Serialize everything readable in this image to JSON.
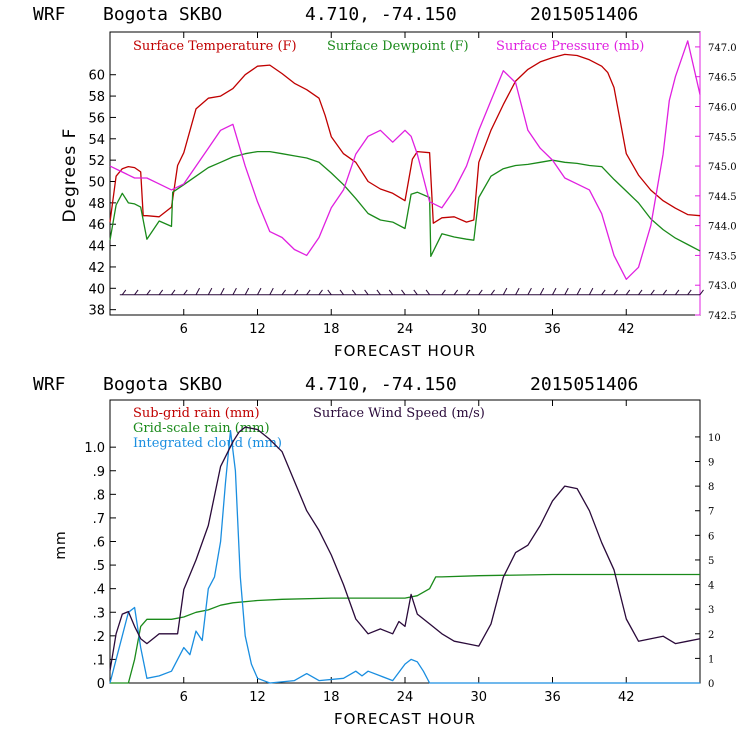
{
  "colors": {
    "temperature": "#c00000",
    "dewpoint": "#1a8a1a",
    "pressure": "#e020e0",
    "subgrid": "#c00000",
    "gridscale": "#1a8a1a",
    "cloud": "#1a8ee0",
    "wind": "#2a0a3a",
    "barbs": "#2a0a3a"
  },
  "chart_data": [
    {
      "type": "line",
      "header": {
        "model": "WRF",
        "station": "Bogota SKBO",
        "coords": "4.710, -74.150",
        "init": "2015051406"
      },
      "xlabel": "FORECAST HOUR",
      "ylabel": "Degrees F",
      "xlim": [
        0,
        48
      ],
      "ylim": [
        37.5,
        64
      ],
      "y2lim": [
        742.5,
        747.25
      ],
      "xticks": [
        "6",
        "12",
        "18",
        "24",
        "30",
        "36",
        "42"
      ],
      "yticks": [
        "38",
        "40",
        "42",
        "44",
        "46",
        "48",
        "50",
        "52",
        "54",
        "56",
        "58",
        "60"
      ],
      "y2ticks": [
        "742.5",
        "743.0",
        "743.5",
        "744.0",
        "744.5",
        "745.0",
        "745.5",
        "746.0",
        "746.5",
        "747.0"
      ],
      "legend": [
        "Surface Temperature (F)",
        "Surface Dewpoint (F)",
        "Surface Pressure (mb)"
      ],
      "series": [
        {
          "name": "Surface Temperature (F)",
          "x": [
            0,
            0.5,
            1,
            1.5,
            2,
            2.5,
            2.7,
            3,
            4,
            5,
            5.5,
            6,
            7,
            8,
            9,
            10,
            11,
            12,
            13,
            14,
            15,
            16,
            17,
            17.5,
            18,
            19,
            20,
            21,
            22,
            23,
            24,
            24.6,
            25,
            26,
            26.3,
            27,
            28,
            29,
            29.6,
            30,
            31,
            32,
            33,
            34,
            35,
            36,
            37,
            38,
            39,
            40,
            40.5,
            41,
            42,
            43,
            44,
            45,
            46,
            47,
            48
          ],
          "values": [
            46.2,
            50.5,
            51.2,
            51.4,
            51.3,
            50.9,
            46.8,
            46.8,
            46.7,
            47.6,
            51.5,
            52.7,
            56.8,
            57.8,
            58.0,
            58.7,
            60.0,
            60.8,
            60.9,
            60.1,
            59.2,
            58.6,
            57.8,
            56.2,
            54.2,
            52.6,
            51.8,
            50.0,
            49.3,
            48.9,
            48.2,
            52.1,
            52.8,
            52.7,
            46.1,
            46.6,
            46.7,
            46.2,
            46.4,
            51.8,
            54.8,
            57.2,
            59.4,
            60.5,
            61.2,
            61.6,
            61.9,
            61.8,
            61.4,
            60.8,
            60.2,
            58.8,
            52.6,
            50.6,
            49.2,
            48.2,
            47.5,
            46.9,
            46.8
          ]
        },
        {
          "name": "Surface Dewpoint (F)",
          "x": [
            0,
            0.5,
            1,
            1.5,
            2,
            2.5,
            3,
            4,
            5,
            5.1,
            6,
            7,
            8,
            9,
            10,
            11,
            12,
            13,
            14,
            15,
            16,
            17,
            18,
            19,
            20,
            21,
            22,
            23,
            24,
            24.5,
            25,
            26,
            26.1,
            27,
            28,
            29,
            29.6,
            30,
            31,
            32,
            33,
            34,
            35,
            36,
            37,
            38,
            39,
            40,
            41,
            42,
            43,
            44,
            45,
            46,
            47,
            48
          ],
          "values": [
            44.5,
            47.8,
            48.9,
            48.0,
            47.9,
            47.6,
            44.6,
            46.3,
            45.8,
            49.0,
            49.7,
            50.5,
            51.3,
            51.8,
            52.3,
            52.6,
            52.8,
            52.8,
            52.6,
            52.4,
            52.2,
            51.8,
            50.8,
            49.7,
            48.4,
            47.0,
            46.4,
            46.2,
            45.6,
            48.8,
            49.0,
            48.5,
            43.0,
            45.1,
            44.8,
            44.6,
            44.5,
            48.5,
            50.5,
            51.2,
            51.5,
            51.6,
            51.8,
            52.0,
            51.8,
            51.7,
            51.5,
            51.4,
            50.2,
            49.1,
            48.0,
            46.5,
            45.5,
            44.7,
            44.1,
            43.5
          ]
        },
        {
          "name": "Surface Pressure (mb)",
          "axis": "right",
          "x": [
            0,
            1,
            2,
            3,
            4,
            5,
            6,
            7,
            8,
            9,
            10,
            11,
            12,
            13,
            14,
            15,
            16,
            17,
            18,
            19,
            20,
            21,
            22,
            23,
            24,
            24.5,
            25,
            26,
            27,
            28,
            29,
            30,
            31,
            32,
            33,
            34,
            35,
            36,
            37,
            38,
            39,
            40,
            41,
            42,
            43,
            44,
            45,
            45.5,
            46,
            47,
            48
          ],
          "values": [
            745.0,
            744.9,
            744.8,
            744.8,
            744.7,
            744.6,
            744.7,
            745.0,
            745.3,
            745.6,
            745.7,
            745.0,
            744.4,
            743.9,
            743.8,
            743.6,
            743.5,
            743.8,
            744.3,
            744.6,
            745.2,
            745.5,
            745.6,
            745.4,
            745.6,
            745.5,
            745.2,
            744.4,
            744.3,
            744.6,
            745.0,
            745.6,
            746.1,
            746.6,
            746.4,
            745.6,
            745.3,
            745.1,
            744.8,
            744.7,
            744.6,
            744.2,
            743.5,
            743.1,
            743.3,
            744.0,
            745.2,
            746.1,
            746.5,
            747.1,
            746.2
          ]
        }
      ],
      "wind_barbs": "row of wind barbs along y=39.4 from hour 1 to 48"
    },
    {
      "type": "line",
      "header": {
        "model": "WRF",
        "station": "Bogota SKBO",
        "coords": "4.710, -74.150",
        "init": "2015051406"
      },
      "xlabel": "FORECAST HOUR",
      "ylabel": "mm",
      "xlim": [
        0,
        48
      ],
      "ylim": [
        0,
        1.2
      ],
      "y2lim": [
        0,
        11.5
      ],
      "xticks": [
        "6",
        "12",
        "18",
        "24",
        "30",
        "36",
        "42"
      ],
      "yticks": [
        "0",
        ".1",
        ".2",
        ".3",
        ".4",
        ".5",
        ".6",
        ".7",
        ".8",
        ".9",
        "1.0"
      ],
      "y2ticks": [
        "0",
        "1",
        "2",
        "3",
        "4",
        "5",
        "6",
        "7",
        "8",
        "9",
        "10"
      ],
      "legend": [
        "Sub-grid rain (mm)",
        "Grid-scale rain (mm)",
        "Integrated cloud (mm)",
        "Surface Wind Speed (m/s)"
      ],
      "series": [
        {
          "name": "Grid-scale rain (mm)",
          "x": [
            0,
            1.5,
            2,
            2.5,
            3,
            4,
            5,
            6,
            7,
            8,
            9,
            10,
            12,
            14,
            18,
            20,
            24,
            25,
            26,
            26.5,
            27,
            30,
            36,
            42,
            48
          ],
          "values": [
            0,
            0,
            0.1,
            0.24,
            0.27,
            0.27,
            0.27,
            0.28,
            0.3,
            0.31,
            0.33,
            0.34,
            0.35,
            0.355,
            0.36,
            0.36,
            0.36,
            0.37,
            0.4,
            0.45,
            0.45,
            0.455,
            0.46,
            0.46,
            0.46
          ]
        },
        {
          "name": "Integrated cloud (mm)",
          "x": [
            0,
            1,
            1.5,
            2,
            2.5,
            3,
            4,
            5,
            5.5,
            6,
            6.5,
            7,
            7.5,
            8,
            8.5,
            9,
            9.4,
            9.8,
            10.2,
            10.6,
            11,
            11.5,
            12,
            13,
            15,
            16,
            17,
            19,
            20,
            20.5,
            21,
            22,
            23,
            24,
            24.5,
            25,
            25.5,
            26,
            27,
            48
          ],
          "values": [
            0,
            0.2,
            0.3,
            0.32,
            0.15,
            0.02,
            0.03,
            0.05,
            0.1,
            0.15,
            0.12,
            0.22,
            0.18,
            0.4,
            0.45,
            0.6,
            0.85,
            1.07,
            0.9,
            0.45,
            0.2,
            0.08,
            0.02,
            0,
            0.01,
            0.04,
            0.01,
            0.02,
            0.05,
            0.03,
            0.05,
            0.03,
            0.01,
            0.08,
            0.1,
            0.09,
            0.05,
            0,
            0,
            0
          ]
        },
        {
          "name": "Surface Wind Speed (m/s)",
          "axis": "right",
          "x": [
            0,
            0.5,
            1,
            1.5,
            2,
            2.5,
            3,
            4,
            5,
            5.5,
            6,
            7,
            8,
            9,
            10,
            10.5,
            11,
            12,
            13,
            14,
            15,
            16,
            17,
            18,
            19,
            20,
            21,
            22,
            23,
            23.5,
            24,
            24.5,
            25,
            26,
            27,
            28,
            29,
            30,
            31,
            32,
            33,
            34,
            35,
            36,
            37,
            38,
            39,
            40,
            41,
            42,
            43,
            44,
            45,
            46,
            47,
            48
          ],
          "values": [
            0.5,
            2,
            2.8,
            2.9,
            2.3,
            1.8,
            1.6,
            2.0,
            2.0,
            2.0,
            3.8,
            5.0,
            6.4,
            8.8,
            9.8,
            10.2,
            10.4,
            10.3,
            9.9,
            9.4,
            8.2,
            7.0,
            6.2,
            5.2,
            4.0,
            2.6,
            2.0,
            2.2,
            2.0,
            2.5,
            2.3,
            3.6,
            2.8,
            2.4,
            2.0,
            1.7,
            1.6,
            1.5,
            2.4,
            4.3,
            5.3,
            5.6,
            6.4,
            7.4,
            8.0,
            7.9,
            7.0,
            5.7,
            4.6,
            2.6,
            1.7,
            1.8,
            1.9,
            1.6,
            1.7,
            1.8
          ]
        }
      ]
    }
  ]
}
